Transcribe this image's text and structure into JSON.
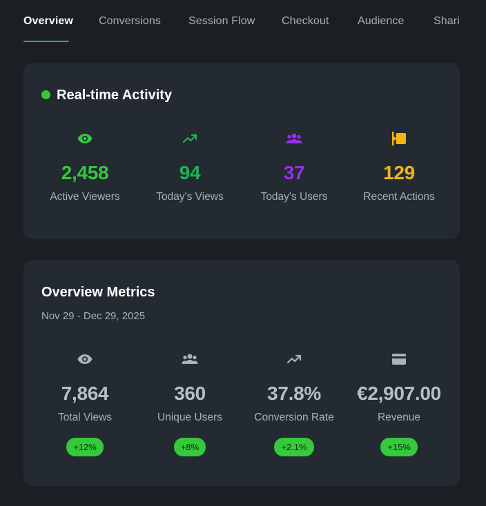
{
  "tabs": [
    {
      "label": "Overview",
      "active": true
    },
    {
      "label": "Conversions",
      "active": false
    },
    {
      "label": "Session Flow",
      "active": false
    },
    {
      "label": "Checkout",
      "active": false
    },
    {
      "label": "Audience",
      "active": false
    },
    {
      "label": "Shari",
      "active": false
    }
  ],
  "realtime": {
    "title": "Real-time Activity",
    "metrics": [
      {
        "icon": "eye-icon",
        "value": "2,458",
        "label": "Active Viewers",
        "color": "#35c93b"
      },
      {
        "icon": "trending-up-icon",
        "value": "94",
        "label": "Today's Views",
        "color": "#1db35a"
      },
      {
        "icon": "users-icon",
        "value": "37",
        "label": "Today's Users",
        "color": "#9b2cf0"
      },
      {
        "icon": "actions-icon",
        "value": "129",
        "label": "Recent Actions",
        "color": "#f5b416"
      }
    ]
  },
  "overview": {
    "title": "Overview Metrics",
    "date_range": "Nov 29 - Dec 29, 2025",
    "metrics": [
      {
        "icon": "eye-icon",
        "value": "7,864",
        "label": "Total Views",
        "change": "+12%"
      },
      {
        "icon": "users-icon",
        "value": "360",
        "label": "Unique Users",
        "change": "+8%"
      },
      {
        "icon": "trending-up-icon",
        "value": "37.8%",
        "label": "Conversion Rate",
        "change": "+2.1%"
      },
      {
        "icon": "credit-card-icon",
        "value": "€2,907.00",
        "label": "Revenue",
        "change": "+15%"
      }
    ]
  },
  "colors": {
    "accent": "#2bb35a",
    "badge": "#35c93b",
    "muted_icon": "#aab2ba"
  }
}
